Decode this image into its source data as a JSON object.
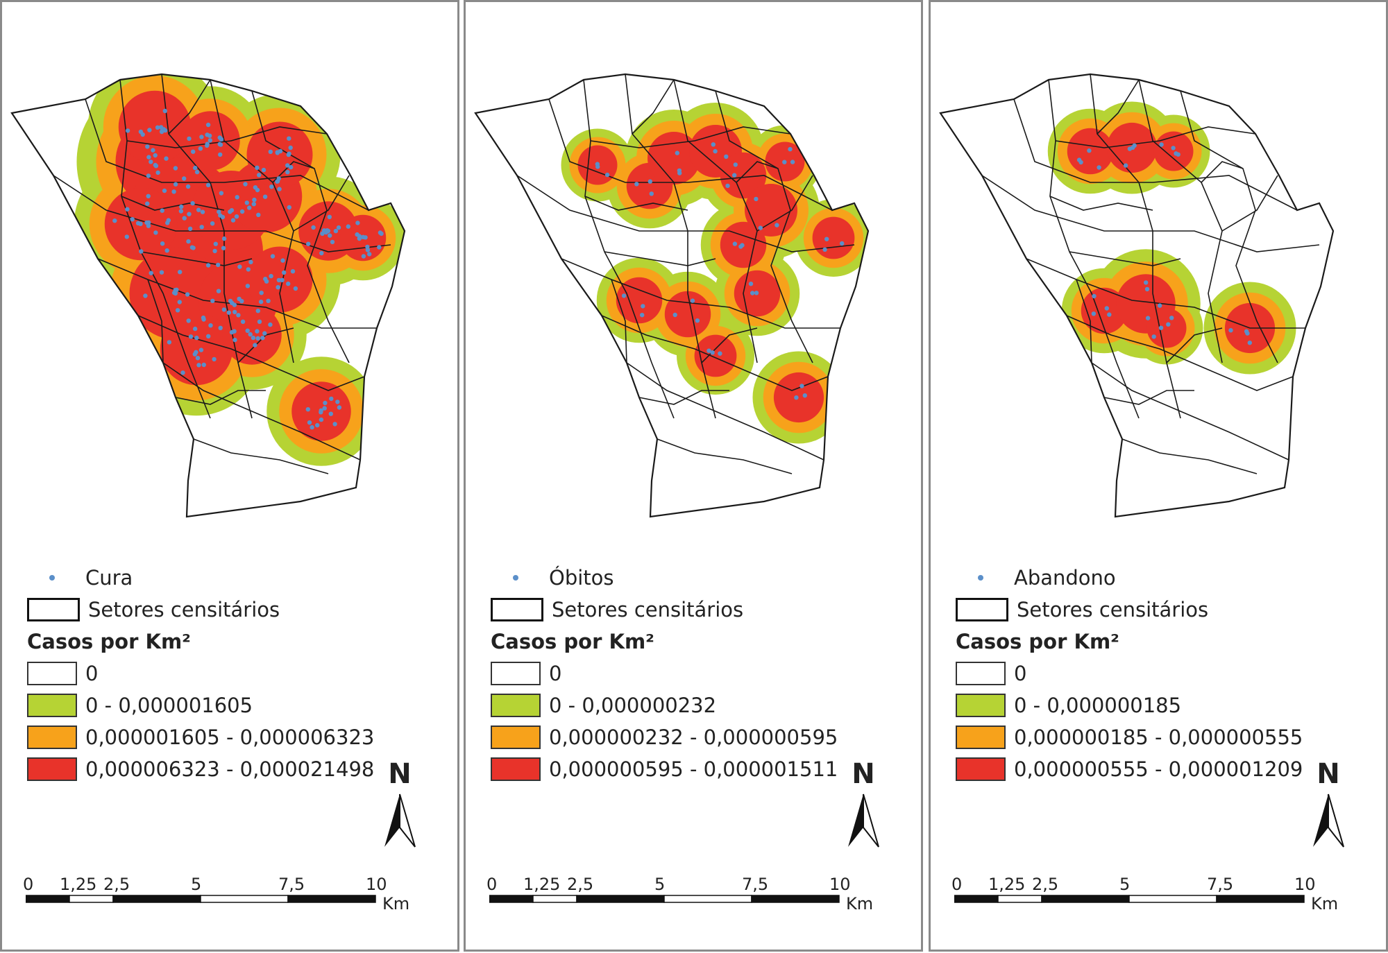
{
  "colors": {
    "green": "#b6d334",
    "orange": "#f7a21b",
    "red": "#e8332a",
    "point": "#5b8fc9",
    "outline": "#1a1a1a"
  },
  "panels": [
    {
      "legend": {
        "point_label": "Cura",
        "sector_label": "Setores censitários",
        "title": "Casos por Km²",
        "classes": [
          "0",
          "0 - 0,000001605",
          "0,000001605 - 0,000006323",
          "0,000006323 - 0,000021498"
        ]
      }
    },
    {
      "legend": {
        "point_label": "Óbitos",
        "sector_label": "Setores censitários",
        "title": "Casos por Km²",
        "classes": [
          "0",
          "0 - 0,000000232",
          "0,000000232 - 0,000000595",
          "0,000000595 - 0,000001511"
        ]
      }
    },
    {
      "legend": {
        "point_label": "Abandono",
        "sector_label": "Setores censitários",
        "title": "Casos por Km²",
        "classes": [
          "0",
          "0 - 0,000000185",
          "0,000000185 - 0,000000555",
          "0,000000555 - 0,000001209"
        ]
      }
    }
  ],
  "north_label": "N",
  "scale": {
    "ticks": [
      "0",
      "1,25",
      "2,5",
      "5",
      "7,5",
      "10"
    ],
    "unit": "Km"
  }
}
